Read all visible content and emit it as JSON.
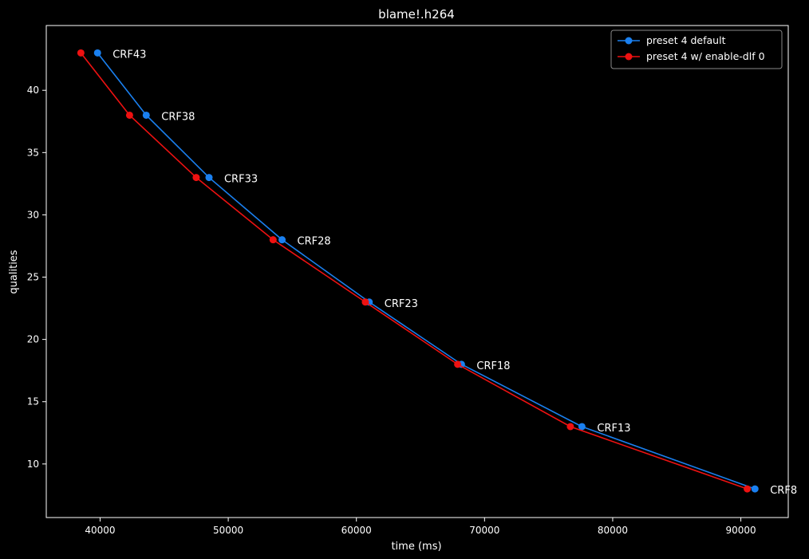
{
  "chart_data": {
    "type": "line",
    "title": "blame!.h264",
    "xlabel": "time (ms)",
    "ylabel": "qualities",
    "xlim": [
      35800,
      93700
    ],
    "ylim": [
      5.7,
      45.2
    ],
    "x_ticks": [
      40000,
      50000,
      60000,
      70000,
      80000,
      90000
    ],
    "y_ticks": [
      10,
      15,
      20,
      25,
      30,
      35,
      40
    ],
    "grid": false,
    "legend_position": "top-right",
    "point_labels": [
      "CRF43",
      "CRF38",
      "CRF33",
      "CRF28",
      "CRF23",
      "CRF18",
      "CRF13",
      "CRF8"
    ],
    "series": [
      {
        "name": "preset 4 default",
        "color": "#1a80f0",
        "x": [
          39800,
          43600,
          48500,
          54200,
          61000,
          68200,
          77600,
          91100
        ],
        "y": [
          43,
          38,
          33,
          28,
          23,
          18,
          13,
          8
        ]
      },
      {
        "name": "preset 4 w/ enable-dlf 0",
        "color": "#ee1111",
        "x": [
          38500,
          42300,
          47500,
          53500,
          60700,
          67900,
          76700,
          90500
        ],
        "y": [
          43,
          38,
          33,
          28,
          23,
          18,
          13,
          8
        ]
      }
    ]
  }
}
